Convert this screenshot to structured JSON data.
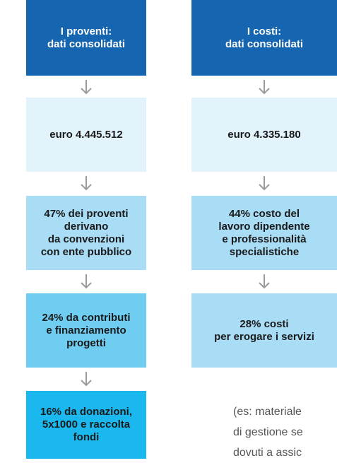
{
  "left": {
    "boxes": [
      {
        "lines": [
          "I proventi:",
          "dati consolidati"
        ]
      },
      {
        "lines": [
          "euro 4.445.512"
        ]
      },
      {
        "lines": [
          "47% dei proventi",
          "derivano",
          "da convenzioni",
          "con ente pubblico"
        ]
      },
      {
        "lines": [
          "24% da contributi",
          "e finanziamento",
          "progetti"
        ]
      },
      {
        "lines": [
          "16% da donazioni,",
          "5x1000 e raccolta",
          "fondi"
        ]
      }
    ]
  },
  "right": {
    "boxes": [
      {
        "lines": [
          "I costi:",
          "dati consolidati"
        ]
      },
      {
        "lines": [
          "euro 4.335.180"
        ]
      },
      {
        "lines": [
          "44% costo del",
          "lavoro dipendente",
          "e professionalità",
          "specialistiche"
        ]
      },
      {
        "lines": [
          "28% costi",
          "per erogare i servizi"
        ]
      }
    ]
  },
  "note": {
    "lines": [
      "(es: materiale",
      "di gestione se",
      "dovuti a assic"
    ]
  }
}
